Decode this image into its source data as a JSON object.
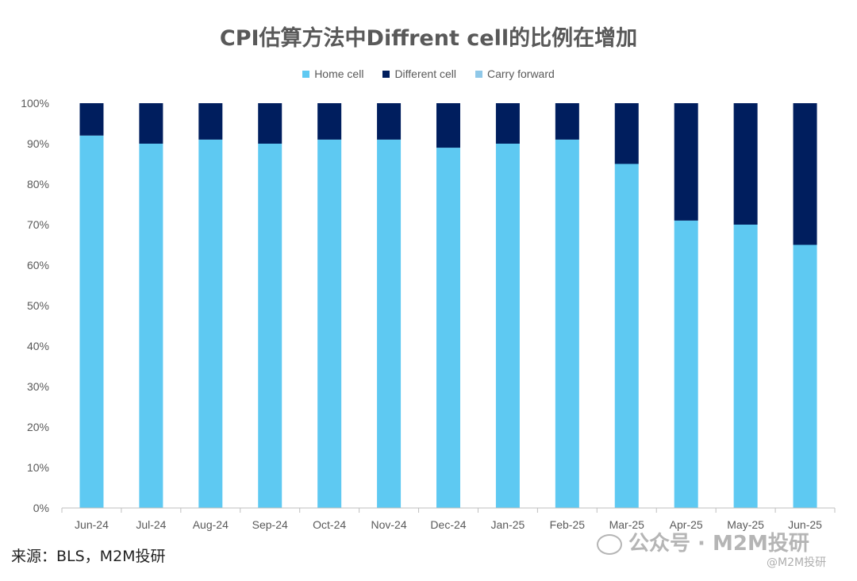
{
  "chart_data": {
    "type": "bar",
    "stacked": true,
    "title": "CPI估算方法中Diffrent cell的比例在增加",
    "categories": [
      "Jun-24",
      "Jul-24",
      "Aug-24",
      "Sep-24",
      "Oct-24",
      "Nov-24",
      "Dec-24",
      "Jan-25",
      "Feb-25",
      "Mar-25",
      "Apr-25",
      "May-25",
      "Jun-25"
    ],
    "series": [
      {
        "name": "Home cell",
        "color": "#5EC9F2",
        "values": [
          92,
          90,
          91,
          90,
          91,
          91,
          89,
          90,
          91,
          85,
          71,
          70,
          65
        ]
      },
      {
        "name": "Different cell",
        "color": "#001E5E",
        "values": [
          8,
          10,
          9,
          10,
          9,
          9,
          11,
          10,
          9,
          15,
          29,
          30,
          35
        ]
      },
      {
        "name": "Carry forward",
        "color": "#8FC8E8",
        "values": [
          0,
          0,
          0,
          0,
          0,
          0,
          0,
          0,
          0,
          0,
          0,
          0,
          0
        ]
      }
    ],
    "ylim": [
      0,
      100
    ],
    "yticks": [
      "0%",
      "10%",
      "20%",
      "30%",
      "40%",
      "50%",
      "60%",
      "70%",
      "80%",
      "90%",
      "100%"
    ],
    "legend_position": "top",
    "grid": false
  },
  "source": "来源：BLS，M2M投研",
  "watermark": "公众号 · M2M投研",
  "handle": "@M2M投研"
}
